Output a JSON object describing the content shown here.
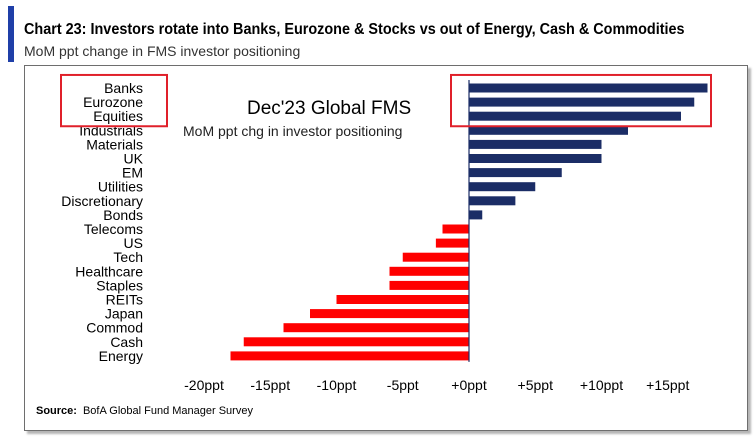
{
  "header": {
    "title": "Chart 23: Investors rotate into Banks, Eurozone & Stocks vs out of Energy, Cash & Commodities",
    "subtitle": "MoM ppt change in FMS investor positioning",
    "accent_color": "#1f3fa8"
  },
  "source": {
    "label": "Source:",
    "text": "BofA Global Fund Manager Survey"
  },
  "colors": {
    "positive": "#1b2d66",
    "negative": "#ff0000",
    "highlight_box": "#e0202a",
    "zero_line": "#1b2d66"
  },
  "chart_data": {
    "type": "bar",
    "orientation": "horizontal",
    "title": "Dec'23 Global FMS",
    "subtitle": "MoM ppt chg in investor positioning",
    "categories": [
      "Banks",
      "Eurozone",
      "Equities",
      "Industrials",
      "Materials",
      "UK",
      "EM",
      "Utilities",
      "Discretionary",
      "Bonds",
      "Telecoms",
      "US",
      "Tech",
      "Healthcare",
      "Staples",
      "REITs",
      "Japan",
      "Commod",
      "Cash",
      "Energy"
    ],
    "values": [
      18,
      17,
      16,
      12,
      10,
      10,
      7,
      5,
      3.5,
      1,
      -2,
      -2.5,
      -5,
      -6,
      -6,
      -10,
      -12,
      -14,
      -17,
      -18
    ],
    "xlim": [
      -22,
      18
    ],
    "tick_values": [
      -20,
      -15,
      -10,
      -5,
      0,
      5,
      10,
      15
    ],
    "tick_labels": [
      "-20ppt",
      "-15ppt",
      "-10ppt",
      "-5ppt",
      "+0ppt",
      "+5ppt",
      "+10ppt",
      "+15ppt"
    ],
    "highlighted_categories": [
      "Banks",
      "Eurozone",
      "Equities"
    ],
    "grid": false,
    "legend": "none"
  }
}
